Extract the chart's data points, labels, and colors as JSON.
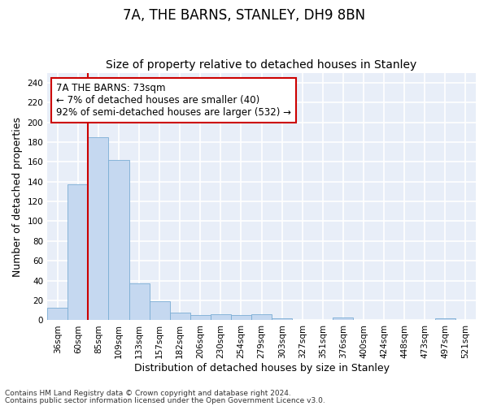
{
  "title": "7A, THE BARNS, STANLEY, DH9 8BN",
  "subtitle": "Size of property relative to detached houses in Stanley",
  "xlabel": "Distribution of detached houses by size in Stanley",
  "ylabel": "Number of detached properties",
  "categories": [
    "36sqm",
    "60sqm",
    "85sqm",
    "109sqm",
    "133sqm",
    "157sqm",
    "182sqm",
    "206sqm",
    "230sqm",
    "254sqm",
    "279sqm",
    "303sqm",
    "327sqm",
    "351sqm",
    "376sqm",
    "400sqm",
    "424sqm",
    "448sqm",
    "473sqm",
    "497sqm",
    "521sqm"
  ],
  "values": [
    13,
    137,
    185,
    162,
    37,
    19,
    8,
    5,
    6,
    5,
    6,
    2,
    0,
    0,
    3,
    0,
    0,
    0,
    0,
    2,
    0
  ],
  "bar_color": "#c5d8f0",
  "bar_edge_color": "#7aadd4",
  "vline_x": 1.5,
  "vline_color": "#cc0000",
  "annotation_text": "7A THE BARNS: 73sqm\n← 7% of detached houses are smaller (40)\n92% of semi-detached houses are larger (532) →",
  "annotation_box_color": "#ffffff",
  "annotation_box_edge": "#cc0000",
  "ylim": [
    0,
    250
  ],
  "yticks": [
    0,
    20,
    40,
    60,
    80,
    100,
    120,
    140,
    160,
    180,
    200,
    220,
    240
  ],
  "footer1": "Contains HM Land Registry data © Crown copyright and database right 2024.",
  "footer2": "Contains public sector information licensed under the Open Government Licence v3.0.",
  "plot_bg_color": "#e8eef8",
  "fig_bg_color": "#ffffff",
  "grid_color": "#ffffff",
  "title_fontsize": 12,
  "subtitle_fontsize": 10,
  "tick_fontsize": 7.5,
  "ylabel_fontsize": 9,
  "xlabel_fontsize": 9,
  "footer_fontsize": 6.5,
  "annotation_fontsize": 8.5
}
